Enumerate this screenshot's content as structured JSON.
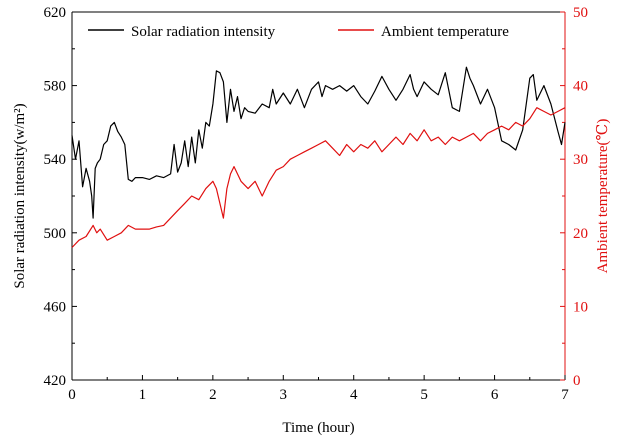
{
  "chart_data": {
    "type": "line",
    "xlabel": "Time (hour)",
    "ylabel_left": "Solar radiation intensity(w/m²)",
    "ylabel_right": "Ambient temperature(℃)",
    "xlim": [
      0,
      7
    ],
    "ylim_left": [
      420,
      620
    ],
    "ylim_right": [
      0,
      50
    ],
    "x_ticks": [
      0,
      1,
      2,
      3,
      4,
      5,
      6,
      7
    ],
    "y_left_ticks": [
      420,
      460,
      500,
      540,
      580,
      620
    ],
    "y_right_ticks": [
      0,
      10,
      20,
      30,
      40,
      50
    ],
    "grid": false,
    "legend_position": "top",
    "colors": {
      "left_axis": "#000000",
      "right_axis": "#e01010"
    },
    "series": [
      {
        "name": "Solar radiation intensity",
        "axis": "left",
        "color": "#000000",
        "x": [
          0,
          0.05,
          0.1,
          0.15,
          0.2,
          0.25,
          0.28,
          0.3,
          0.33,
          0.36,
          0.4,
          0.45,
          0.5,
          0.55,
          0.6,
          0.65,
          0.7,
          0.75,
          0.8,
          0.85,
          0.9,
          1.0,
          1.1,
          1.2,
          1.3,
          1.4,
          1.45,
          1.5,
          1.55,
          1.6,
          1.65,
          1.7,
          1.75,
          1.8,
          1.85,
          1.9,
          1.95,
          2.0,
          2.05,
          2.1,
          2.15,
          2.2,
          2.25,
          2.3,
          2.35,
          2.4,
          2.45,
          2.5,
          2.6,
          2.7,
          2.8,
          2.85,
          2.9,
          3.0,
          3.1,
          3.2,
          3.3,
          3.4,
          3.5,
          3.55,
          3.6,
          3.7,
          3.8,
          3.9,
          4.0,
          4.1,
          4.2,
          4.3,
          4.4,
          4.5,
          4.6,
          4.7,
          4.8,
          4.85,
          4.9,
          5.0,
          5.1,
          5.2,
          5.3,
          5.4,
          5.5,
          5.55,
          5.6,
          5.65,
          5.7,
          5.8,
          5.9,
          6.0,
          6.1,
          6.2,
          6.3,
          6.4,
          6.5,
          6.55,
          6.6,
          6.7,
          6.8,
          6.9,
          6.95,
          7.0
        ],
        "y": [
          553,
          540,
          550,
          525,
          535,
          528,
          520,
          508,
          535,
          538,
          540,
          548,
          550,
          558,
          560,
          555,
          552,
          548,
          529,
          528,
          530,
          530,
          529,
          531,
          530,
          532,
          548,
          533,
          538,
          550,
          536,
          552,
          538,
          556,
          546,
          560,
          558,
          570,
          588,
          587,
          582,
          560,
          578,
          566,
          574,
          562,
          568,
          566,
          565,
          570,
          568,
          578,
          570,
          576,
          570,
          578,
          568,
          578,
          582,
          574,
          580,
          578,
          580,
          577,
          580,
          574,
          570,
          577,
          585,
          578,
          572,
          578,
          586,
          578,
          574,
          582,
          578,
          575,
          587,
          568,
          566,
          578,
          590,
          584,
          580,
          570,
          578,
          568,
          550,
          548,
          545,
          556,
          584,
          586,
          572,
          580,
          570,
          555,
          548,
          560
        ]
      },
      {
        "name": "Ambient temperature",
        "axis": "right",
        "color": "#e01010",
        "x": [
          0,
          0.1,
          0.2,
          0.3,
          0.35,
          0.4,
          0.5,
          0.6,
          0.7,
          0.8,
          0.9,
          1.0,
          1.1,
          1.2,
          1.3,
          1.4,
          1.5,
          1.6,
          1.7,
          1.8,
          1.9,
          2.0,
          2.05,
          2.1,
          2.15,
          2.2,
          2.25,
          2.3,
          2.4,
          2.5,
          2.6,
          2.7,
          2.8,
          2.9,
          3.0,
          3.1,
          3.2,
          3.3,
          3.4,
          3.5,
          3.6,
          3.7,
          3.8,
          3.9,
          4.0,
          4.1,
          4.2,
          4.3,
          4.4,
          4.5,
          4.6,
          4.7,
          4.8,
          4.9,
          5.0,
          5.1,
          5.2,
          5.3,
          5.4,
          5.5,
          5.6,
          5.7,
          5.8,
          5.9,
          6.0,
          6.1,
          6.2,
          6.3,
          6.4,
          6.5,
          6.6,
          6.7,
          6.8,
          6.9,
          7.0
        ],
        "y": [
          18,
          19,
          19.5,
          21,
          20,
          20.5,
          19,
          19.5,
          20,
          21,
          20.5,
          20.5,
          20.5,
          20.8,
          21,
          22,
          23,
          24,
          25,
          24.5,
          26,
          27,
          26,
          24,
          22,
          26,
          28,
          29,
          27,
          26,
          27,
          25,
          27,
          28.5,
          29,
          30,
          30.5,
          31,
          31.5,
          32,
          32.5,
          31.5,
          30.5,
          32,
          31,
          32,
          31.5,
          32.5,
          31,
          32,
          33,
          32,
          33.5,
          32.5,
          34,
          32.5,
          33,
          32,
          33,
          32.5,
          33,
          33.5,
          32.5,
          33.5,
          34,
          34.5,
          34,
          35,
          34.5,
          35.5,
          37,
          36.5,
          36,
          36.5,
          37
        ]
      }
    ]
  }
}
